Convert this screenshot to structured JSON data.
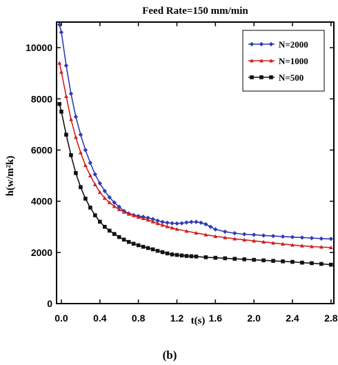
{
  "chart_data": {
    "type": "line",
    "title": "Feed Rate=150 mm/min",
    "xlabel": "t(s)",
    "ylabel": "h(w/m²k)",
    "caption": "(b)",
    "xlim": [
      -0.05,
      2.83
    ],
    "ylim": [
      0,
      11000
    ],
    "xticks": [
      0.0,
      0.4,
      0.8,
      1.2,
      1.6,
      2.0,
      2.4,
      2.8
    ],
    "xtick_labels": [
      "0.0",
      "0.4",
      "0.8",
      "1.2",
      "1.6",
      "2.0",
      "2.4",
      "2.8"
    ],
    "yticks": [
      0,
      2000,
      4000,
      6000,
      8000,
      10000
    ],
    "ytick_labels": [
      "0",
      "2000",
      "4000",
      "6000",
      "8000",
      "10000"
    ],
    "grid": false,
    "legend_position": "top-right",
    "series": [
      {
        "name": "N=2000",
        "color": "#2f3bb0",
        "marker": "diamond",
        "x": [
          -0.02,
          0.0,
          0.05,
          0.1,
          0.15,
          0.2,
          0.25,
          0.3,
          0.35,
          0.4,
          0.45,
          0.5,
          0.55,
          0.6,
          0.65,
          0.7,
          0.75,
          0.8,
          0.85,
          0.9,
          0.95,
          1.0,
          1.05,
          1.1,
          1.15,
          1.2,
          1.25,
          1.3,
          1.35,
          1.4,
          1.45,
          1.5,
          1.55,
          1.6,
          1.7,
          1.8,
          1.9,
          2.0,
          2.1,
          2.2,
          2.3,
          2.4,
          2.5,
          2.6,
          2.7,
          2.8
        ],
        "y": [
          10900,
          10600,
          9300,
          8200,
          7300,
          6600,
          6000,
          5500,
          5050,
          4700,
          4400,
          4150,
          3950,
          3780,
          3620,
          3520,
          3460,
          3420,
          3390,
          3350,
          3300,
          3240,
          3190,
          3160,
          3140,
          3130,
          3140,
          3170,
          3190,
          3190,
          3160,
          3100,
          3000,
          2900,
          2810,
          2750,
          2710,
          2690,
          2660,
          2640,
          2620,
          2600,
          2580,
          2560,
          2540,
          2530
        ]
      },
      {
        "name": "N=1000",
        "color": "#d02020",
        "marker": "triangle",
        "x": [
          -0.02,
          0.0,
          0.05,
          0.1,
          0.15,
          0.2,
          0.25,
          0.3,
          0.35,
          0.4,
          0.45,
          0.5,
          0.55,
          0.6,
          0.65,
          0.7,
          0.75,
          0.8,
          0.85,
          0.9,
          0.95,
          1.0,
          1.05,
          1.1,
          1.15,
          1.2,
          1.3,
          1.4,
          1.5,
          1.6,
          1.7,
          1.8,
          1.9,
          2.0,
          2.1,
          2.2,
          2.3,
          2.4,
          2.5,
          2.6,
          2.7,
          2.8
        ],
        "y": [
          9400,
          9050,
          8100,
          7200,
          6500,
          5900,
          5400,
          5000,
          4650,
          4350,
          4120,
          3950,
          3800,
          3680,
          3580,
          3500,
          3440,
          3380,
          3330,
          3270,
          3200,
          3130,
          3070,
          3010,
          2960,
          2910,
          2830,
          2760,
          2690,
          2630,
          2580,
          2530,
          2490,
          2450,
          2410,
          2370,
          2330,
          2290,
          2260,
          2230,
          2210,
          2190
        ]
      },
      {
        "name": "N=500",
        "color": "#111111",
        "marker": "square",
        "x": [
          -0.02,
          0.0,
          0.05,
          0.1,
          0.15,
          0.2,
          0.25,
          0.3,
          0.35,
          0.4,
          0.45,
          0.5,
          0.55,
          0.6,
          0.65,
          0.7,
          0.75,
          0.8,
          0.85,
          0.9,
          0.95,
          1.0,
          1.05,
          1.1,
          1.15,
          1.2,
          1.25,
          1.3,
          1.35,
          1.4,
          1.5,
          1.6,
          1.7,
          1.8,
          1.9,
          2.0,
          2.1,
          2.2,
          2.3,
          2.4,
          2.5,
          2.6,
          2.7,
          2.8
        ],
        "y": [
          7800,
          7500,
          6600,
          5800,
          5100,
          4550,
          4100,
          3750,
          3450,
          3200,
          3000,
          2850,
          2720,
          2600,
          2500,
          2410,
          2340,
          2280,
          2220,
          2170,
          2120,
          2060,
          2010,
          1960,
          1920,
          1900,
          1880,
          1860,
          1850,
          1840,
          1810,
          1790,
          1770,
          1750,
          1730,
          1710,
          1690,
          1670,
          1650,
          1630,
          1600,
          1580,
          1550,
          1520
        ]
      }
    ]
  }
}
